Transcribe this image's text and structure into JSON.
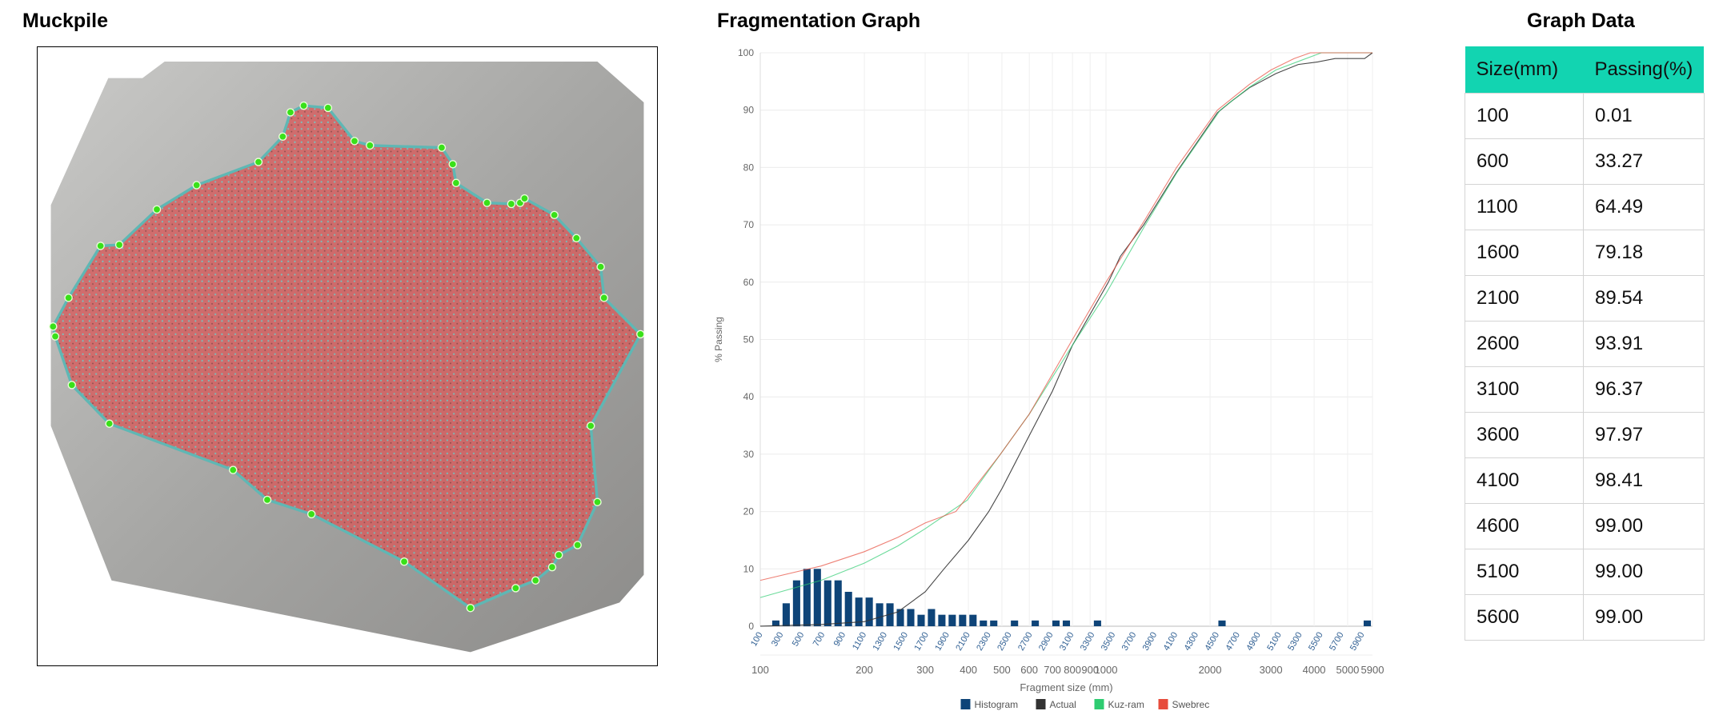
{
  "muckpile": {
    "title": "Muckpile",
    "colors": {
      "fill": "#d9595a",
      "outline": "#5fb7b4",
      "marker": "#39e019"
    }
  },
  "graph": {
    "title": "Fragmentation Graph",
    "chart_data": {
      "type": "bar+line",
      "ylabel": "% Passing",
      "xlabel": "Fragment size (mm)",
      "ylim": [
        0,
        100
      ],
      "yticks": [
        0,
        10,
        20,
        30,
        40,
        50,
        60,
        70,
        80,
        90,
        100
      ],
      "grid": true,
      "legend_position": "bottom",
      "histogram": {
        "name": "Histogram",
        "color": "#0e4478",
        "categories": [
          100,
          200,
          300,
          400,
          500,
          600,
          700,
          800,
          900,
          1000,
          1100,
          1200,
          1300,
          1400,
          1500,
          1600,
          1700,
          1800,
          1900,
          2000,
          2100,
          2200,
          2300,
          2400,
          2500,
          2600,
          2700,
          2800,
          2900,
          3000,
          3100,
          3200,
          3300,
          3400,
          3500,
          3600,
          3700,
          3800,
          3900,
          4000,
          4100,
          4200,
          4300,
          4400,
          4500,
          4600,
          4700,
          4800,
          4900,
          5000,
          5100,
          5200,
          5300,
          5400,
          5500,
          5600,
          5700,
          5800,
          5900
        ],
        "category_tick_labels": [
          "100",
          "300",
          "500",
          "700",
          "900",
          "1100",
          "1300",
          "1500",
          "1700",
          "1900",
          "2100",
          "2300",
          "2500",
          "2700",
          "2900",
          "3100",
          "3300",
          "3500",
          "3700",
          "3900",
          "4100",
          "4300",
          "4500",
          "4700",
          "4900",
          "5100",
          "5300",
          "5500",
          "5700",
          "5900"
        ],
        "values": [
          0,
          1,
          4,
          8,
          10,
          10,
          8,
          8,
          6,
          5,
          5,
          4,
          4,
          3,
          3,
          2,
          3,
          2,
          2,
          2,
          2,
          1,
          1,
          0,
          1,
          0,
          1,
          0,
          1,
          1,
          0,
          0,
          1,
          0,
          0,
          0,
          0,
          0,
          0,
          0,
          0,
          0,
          0,
          0,
          1,
          0,
          0,
          0,
          0,
          0,
          0,
          0,
          0,
          0,
          0,
          0,
          0,
          0,
          1
        ]
      },
      "log_axis": {
        "range": [
          100,
          5900
        ],
        "ticks": [
          100,
          200,
          300,
          400,
          500,
          600,
          700,
          800,
          900,
          1000,
          2000,
          3000,
          4000,
          5000,
          5900
        ],
        "tick_labels": [
          "100",
          "200",
          "300",
          "400",
          "500",
          "600",
          "700",
          "800",
          "900",
          "1000",
          "2000",
          "3000",
          "4000",
          "5000",
          "5900"
        ]
      },
      "series": [
        {
          "name": "Actual",
          "color": "#333333",
          "points": [
            [
              100,
              0.01
            ],
            [
              150,
              0.3
            ],
            [
              200,
              0.8
            ],
            [
              250,
              2.5
            ],
            [
              300,
              6
            ],
            [
              340,
              10
            ],
            [
              400,
              15
            ],
            [
              458,
              20
            ],
            [
              500,
              24
            ],
            [
              600,
              33.27
            ],
            [
              700,
              41
            ],
            [
              800,
              49
            ],
            [
              1016,
              60
            ],
            [
              1100,
              64.49
            ],
            [
              1286,
              70
            ],
            [
              1600,
              79.18
            ],
            [
              2100,
              89.54
            ],
            [
              2300,
              91.5
            ],
            [
              2600,
              93.91
            ],
            [
              3100,
              96.37
            ],
            [
              3600,
              97.97
            ],
            [
              4100,
              98.41
            ],
            [
              4600,
              99
            ],
            [
              5100,
              99
            ],
            [
              5600,
              99
            ],
            [
              5900,
              100
            ]
          ]
        },
        {
          "name": "Kuz-ram",
          "color": "#2ecc71",
          "points": [
            [
              100,
              5
            ],
            [
              150,
              8
            ],
            [
              200,
              11
            ],
            [
              250,
              14
            ],
            [
              300,
              17
            ],
            [
              397,
              22
            ],
            [
              495,
              30
            ],
            [
              600,
              37
            ],
            [
              800,
              49
            ],
            [
              1000,
              58
            ],
            [
              1300,
              70
            ],
            [
              1600,
              79
            ],
            [
              2140,
              90
            ],
            [
              2600,
              94
            ],
            [
              3100,
              97
            ],
            [
              3600,
              98.5
            ],
            [
              4200,
              100
            ],
            [
              5900,
              100
            ]
          ]
        },
        {
          "name": "Swebrec",
          "color": "#e74c3c",
          "points": [
            [
              100,
              8
            ],
            [
              150,
              10.5
            ],
            [
              200,
              13
            ],
            [
              250,
              15.5
            ],
            [
              300,
              18
            ],
            [
              368,
              20
            ],
            [
              495,
              30
            ],
            [
              600,
              37
            ],
            [
              800,
              50
            ],
            [
              1000,
              60
            ],
            [
              1300,
              71
            ],
            [
              1600,
              80
            ],
            [
              2100,
              90
            ],
            [
              2600,
              94.5
            ],
            [
              3000,
              97
            ],
            [
              3500,
              99
            ],
            [
              3900,
              100
            ],
            [
              5900,
              100
            ]
          ]
        }
      ]
    }
  },
  "graph_data": {
    "title": "Graph Data",
    "headers": [
      "Size(mm)",
      "Passing(%)"
    ],
    "header_color": "#12d4b1",
    "rows": [
      [
        "100",
        "0.01"
      ],
      [
        "600",
        "33.27"
      ],
      [
        "1100",
        "64.49"
      ],
      [
        "1600",
        "79.18"
      ],
      [
        "2100",
        "89.54"
      ],
      [
        "2600",
        "93.91"
      ],
      [
        "3100",
        "96.37"
      ],
      [
        "3600",
        "97.97"
      ],
      [
        "4100",
        "98.41"
      ],
      [
        "4600",
        "99.00"
      ],
      [
        "5100",
        "99.00"
      ],
      [
        "5600",
        "99.00"
      ]
    ]
  }
}
